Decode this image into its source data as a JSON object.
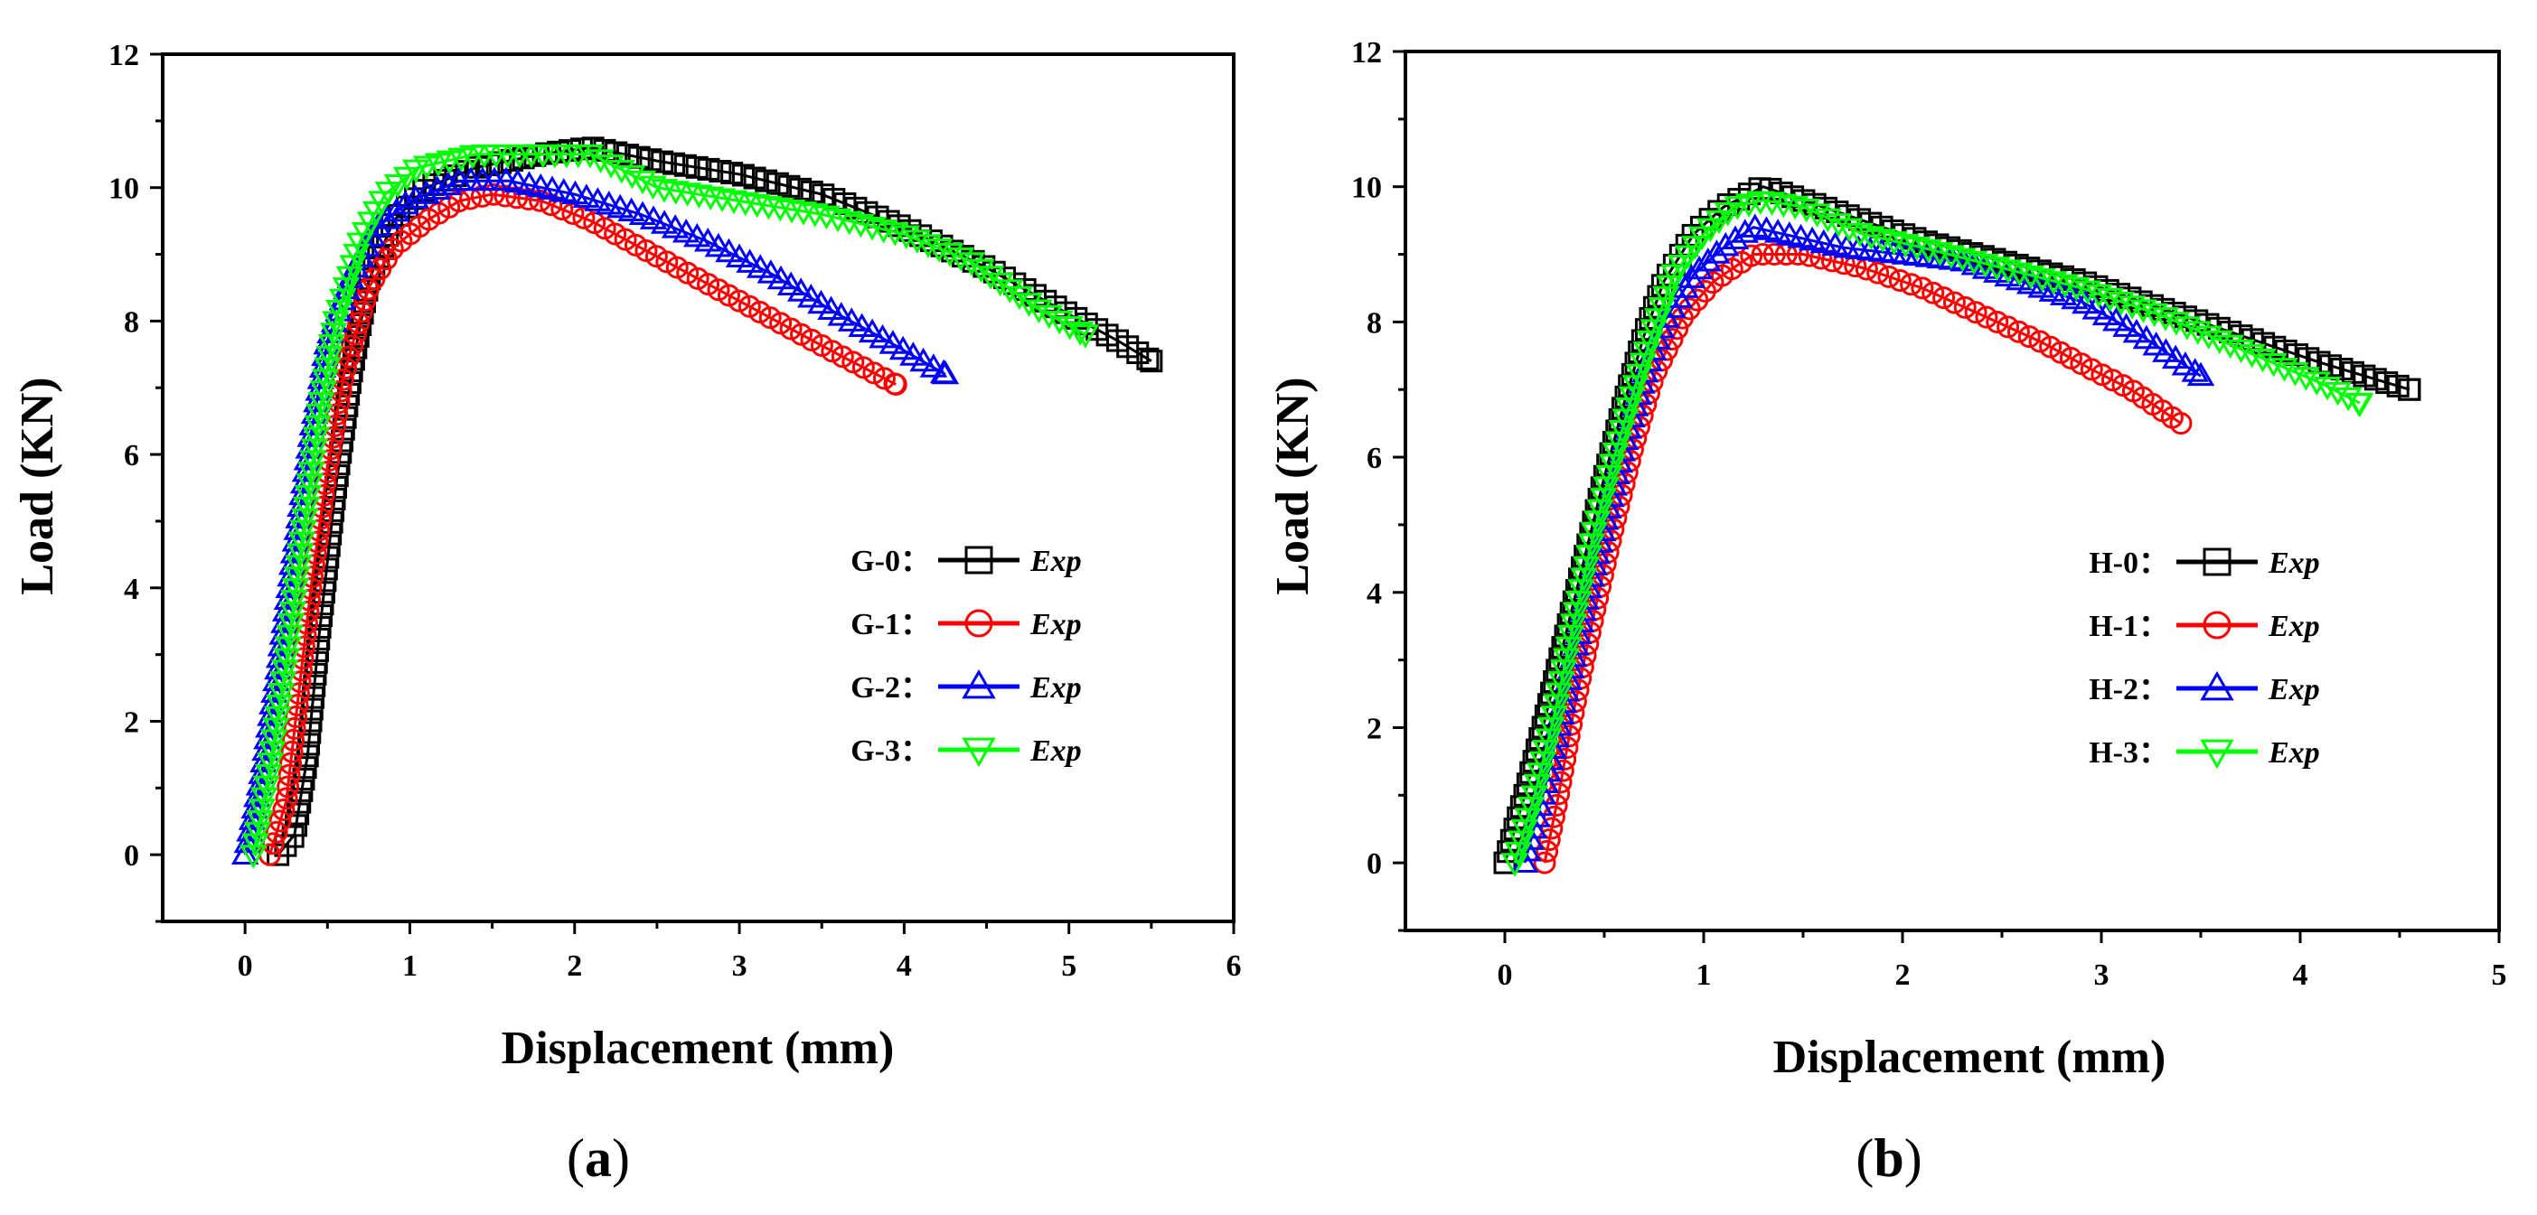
{
  "panels": [
    {
      "caption_letter": "a",
      "legend_exp": "Exp",
      "chart_data": {
        "type": "scatter",
        "xlabel": "Displacement (mm)",
        "ylabel": "Load (KN)",
        "xlim": [
          -0.5,
          6
        ],
        "ylim": [
          -1,
          12
        ],
        "xticks": [
          0,
          1,
          2,
          3,
          4,
          5,
          6
        ],
        "yticks": [
          0,
          2,
          4,
          6,
          8,
          10,
          12
        ],
        "legend_position": "right",
        "series": [
          {
            "name": "G-0：",
            "marker": "square",
            "color": "#000000",
            "points": [
              [
                0.2,
                0
              ],
              [
                0.3,
                0.3
              ],
              [
                0.38,
                1.5
              ],
              [
                0.45,
                3.3
              ],
              [
                0.55,
                5.5
              ],
              [
                0.65,
                7.3
              ],
              [
                0.75,
                8.6
              ],
              [
                0.9,
                9.5
              ],
              [
                1.1,
                10
              ],
              [
                1.4,
                10.3
              ],
              [
                1.8,
                10.5
              ],
              [
                2.1,
                10.6
              ],
              [
                2.5,
                10.4
              ],
              [
                3.0,
                10.2
              ],
              [
                3.5,
                9.9
              ],
              [
                4.0,
                9.4
              ],
              [
                4.5,
                8.8
              ],
              [
                5.0,
                8.1
              ],
              [
                5.3,
                7.7
              ],
              [
                5.5,
                7.4
              ]
            ]
          },
          {
            "name": "G-1：",
            "marker": "circle",
            "color": "#ff0000",
            "points": [
              [
                0.15,
                0
              ],
              [
                0.25,
                0.8
              ],
              [
                0.32,
                2.3
              ],
              [
                0.4,
                4
              ],
              [
                0.5,
                5.8
              ],
              [
                0.6,
                7.2
              ],
              [
                0.75,
                8.5
              ],
              [
                0.9,
                9.1
              ],
              [
                1.1,
                9.5
              ],
              [
                1.3,
                9.8
              ],
              [
                1.5,
                9.9
              ],
              [
                1.8,
                9.8
              ],
              [
                2.1,
                9.5
              ],
              [
                2.4,
                9.1
              ],
              [
                2.7,
                8.7
              ],
              [
                3.0,
                8.3
              ],
              [
                3.3,
                7.9
              ],
              [
                3.6,
                7.5
              ],
              [
                3.95,
                7.05
              ]
            ]
          },
          {
            "name": "G-2：",
            "marker": "triangle-up",
            "color": "#0000ff",
            "points": [
              [
                0,
                0
              ],
              [
                0.1,
                1.2
              ],
              [
                0.2,
                2.8
              ],
              [
                0.3,
                4.6
              ],
              [
                0.4,
                6.3
              ],
              [
                0.5,
                7.7
              ],
              [
                0.65,
                8.7
              ],
              [
                0.8,
                9.4
              ],
              [
                1.0,
                9.8
              ],
              [
                1.3,
                10.1
              ],
              [
                1.6,
                10.1
              ],
              [
                2.0,
                9.9
              ],
              [
                2.4,
                9.6
              ],
              [
                2.8,
                9.2
              ],
              [
                3.2,
                8.7
              ],
              [
                3.6,
                8.1
              ],
              [
                3.9,
                7.7
              ],
              [
                4.25,
                7.2
              ]
            ]
          },
          {
            "name": "G-3：",
            "marker": "triangle-down",
            "color": "#00ff00",
            "points": [
              [
                0.05,
                0
              ],
              [
                0.15,
                1.3
              ],
              [
                0.25,
                2.9
              ],
              [
                0.35,
                4.8
              ],
              [
                0.45,
                6.6
              ],
              [
                0.55,
                8
              ],
              [
                0.7,
                9.2
              ],
              [
                0.85,
                9.9
              ],
              [
                1.05,
                10.3
              ],
              [
                1.4,
                10.5
              ],
              [
                1.8,
                10.5
              ],
              [
                2.1,
                10.5
              ],
              [
                2.5,
                10
              ],
              [
                3.0,
                9.8
              ],
              [
                3.5,
                9.6
              ],
              [
                4.0,
                9.3
              ],
              [
                4.4,
                8.9
              ],
              [
                4.8,
                8.2
              ],
              [
                5.1,
                7.8
              ]
            ]
          }
        ]
      }
    },
    {
      "caption_letter": "b",
      "legend_exp": "Exp",
      "chart_data": {
        "type": "scatter",
        "xlabel": "Displacement (mm)",
        "ylabel": "Load (KN)",
        "xlim": [
          -0.5,
          5
        ],
        "ylim": [
          -1,
          12
        ],
        "xticks": [
          0,
          1,
          2,
          3,
          4,
          5
        ],
        "yticks": [
          0,
          2,
          4,
          6,
          8,
          10,
          12
        ],
        "legend_position": "right",
        "series": [
          {
            "name": "H-0：",
            "marker": "square",
            "color": "#000000",
            "points": [
              [
                0,
                0
              ],
              [
                0.1,
                1
              ],
              [
                0.2,
                2.1
              ],
              [
                0.3,
                3.3
              ],
              [
                0.4,
                4.5
              ],
              [
                0.5,
                5.7
              ],
              [
                0.6,
                6.8
              ],
              [
                0.7,
                7.8
              ],
              [
                0.8,
                8.6
              ],
              [
                0.95,
                9.3
              ],
              [
                1.1,
                9.7
              ],
              [
                1.3,
                10
              ],
              [
                1.5,
                9.8
              ],
              [
                1.8,
                9.5
              ],
              [
                2.1,
                9.2
              ],
              [
                2.5,
                8.9
              ],
              [
                2.9,
                8.6
              ],
              [
                3.3,
                8.2
              ],
              [
                3.7,
                7.8
              ],
              [
                4.1,
                7.4
              ],
              [
                4.55,
                7
              ]
            ]
          },
          {
            "name": "H-1：",
            "marker": "circle",
            "color": "#ff0000",
            "points": [
              [
                0.2,
                0
              ],
              [
                0.27,
                1
              ],
              [
                0.35,
                2.3
              ],
              [
                0.45,
                3.7
              ],
              [
                0.55,
                5
              ],
              [
                0.65,
                6.2
              ],
              [
                0.75,
                7.2
              ],
              [
                0.9,
                8.1
              ],
              [
                1.05,
                8.6
              ],
              [
                1.25,
                9
              ],
              [
                1.5,
                9
              ],
              [
                1.8,
                8.8
              ],
              [
                2.1,
                8.5
              ],
              [
                2.4,
                8.1
              ],
              [
                2.7,
                7.7
              ],
              [
                2.95,
                7.3
              ],
              [
                3.15,
                7
              ],
              [
                3.4,
                6.5
              ]
            ]
          },
          {
            "name": "H-2：",
            "marker": "triangle-up",
            "color": "#0000ff",
            "points": [
              [
                0.1,
                0
              ],
              [
                0.2,
                1.1
              ],
              [
                0.3,
                2.4
              ],
              [
                0.4,
                3.8
              ],
              [
                0.5,
                5
              ],
              [
                0.6,
                6.2
              ],
              [
                0.7,
                7.2
              ],
              [
                0.8,
                8
              ],
              [
                0.95,
                8.7
              ],
              [
                1.1,
                9.1
              ],
              [
                1.25,
                9.4
              ],
              [
                1.4,
                9.3
              ],
              [
                1.7,
                9.1
              ],
              [
                2.0,
                9
              ],
              [
                2.3,
                8.9
              ],
              [
                2.6,
                8.6
              ],
              [
                2.9,
                8.3
              ],
              [
                3.2,
                7.8
              ],
              [
                3.5,
                7.2
              ]
            ]
          },
          {
            "name": "H-3：",
            "marker": "triangle-down",
            "color": "#00ff00",
            "points": [
              [
                0.05,
                0
              ],
              [
                0.15,
                1
              ],
              [
                0.25,
                2.2
              ],
              [
                0.35,
                3.6
              ],
              [
                0.45,
                4.9
              ],
              [
                0.55,
                6
              ],
              [
                0.65,
                7
              ],
              [
                0.75,
                7.9
              ],
              [
                0.85,
                8.7
              ],
              [
                1.0,
                9.3
              ],
              [
                1.15,
                9.7
              ],
              [
                1.3,
                9.8
              ],
              [
                1.5,
                9.7
              ],
              [
                1.8,
                9.3
              ],
              [
                2.1,
                9.1
              ],
              [
                2.5,
                8.8
              ],
              [
                2.9,
                8.5
              ],
              [
                3.3,
                8.1
              ],
              [
                3.7,
                7.6
              ],
              [
                4.1,
                7.1
              ],
              [
                4.3,
                6.8
              ]
            ]
          }
        ]
      }
    }
  ]
}
